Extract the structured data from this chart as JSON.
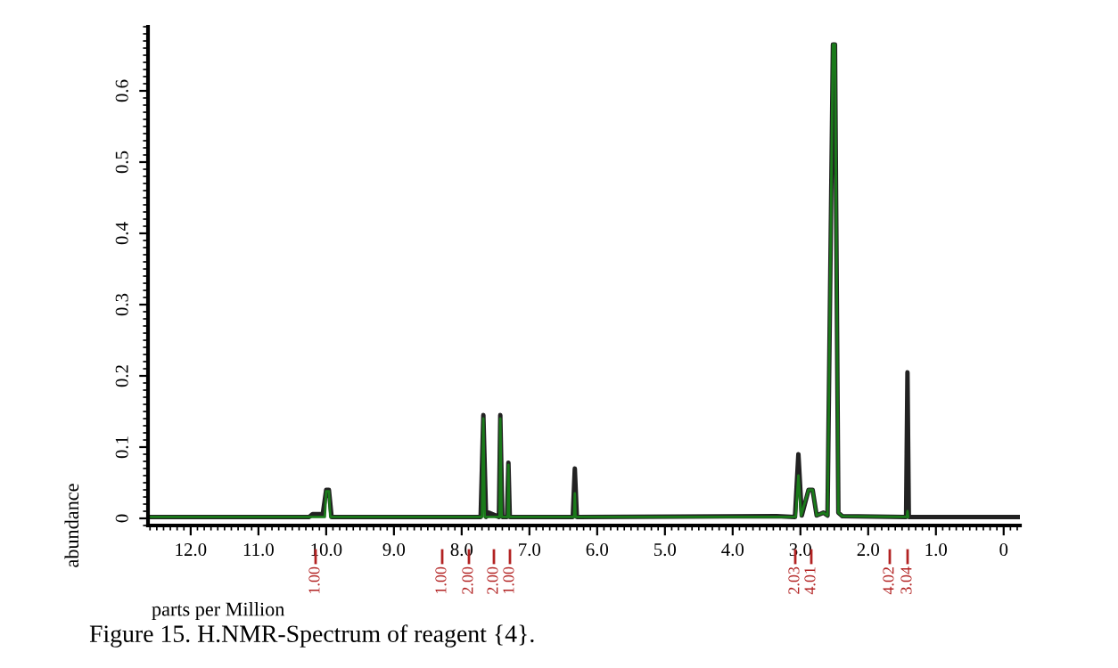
{
  "chart_data": {
    "type": "line",
    "xlabel": "parts per Million",
    "ylabel": "abundance",
    "xlim": [
      12.63,
      -0.24
    ],
    "ylim": [
      -0.01,
      0.69
    ],
    "xticks": [
      {
        "value": 12,
        "label": "12.0"
      },
      {
        "value": 11,
        "label": "11.0"
      },
      {
        "value": 10,
        "label": "10.0"
      },
      {
        "value": 9,
        "label": "9.0"
      },
      {
        "value": 8,
        "label": "8.0"
      },
      {
        "value": 7,
        "label": "7.0"
      },
      {
        "value": 6,
        "label": "6.0"
      },
      {
        "value": 5,
        "label": "5.0"
      },
      {
        "value": 4,
        "label": "4.0"
      },
      {
        "value": 3,
        "label": "3.0"
      },
      {
        "value": 2,
        "label": "2.0"
      },
      {
        "value": 1,
        "label": "1.0"
      },
      0
    ],
    "yticks": [
      0,
      0.1,
      0.2,
      0.3,
      0.4,
      0.5,
      0.6
    ],
    "grid": false,
    "legend": false,
    "marker": "none",
    "line_style": "solid",
    "series": [
      {
        "color": "#222222",
        "x": [
          12.6,
          10.25,
          10.2,
          10.05,
          10.0,
          9.96,
          9.92,
          7.72,
          7.68,
          7.64,
          7.6,
          7.45,
          7.43,
          7.4,
          7.33,
          7.31,
          7.29,
          6.36,
          6.33,
          6.3,
          3.35,
          3.08,
          3.03,
          2.98,
          2.88,
          2.82,
          2.76,
          2.66,
          2.6,
          2.52,
          2.49,
          2.44,
          2.38,
          1.44,
          1.42,
          1.4,
          -0.24
        ],
        "values": [
          0.002,
          0.002,
          0.006,
          0.006,
          0.04,
          0.04,
          0.002,
          0.002,
          0.145,
          0.002,
          0.008,
          0.002,
          0.145,
          0.002,
          0.002,
          0.078,
          0.002,
          0.002,
          0.07,
          0.002,
          0.003,
          0.002,
          0.09,
          0.004,
          0.04,
          0.04,
          0.004,
          0.008,
          0.004,
          0.665,
          0.665,
          0.008,
          0.003,
          0.002,
          0.205,
          0.002,
          0.002
        ]
      },
      {
        "color": "#1a7a1a",
        "x": [
          12.6,
          10.6,
          10.02,
          10.0,
          9.96,
          9.94,
          7.7,
          7.68,
          7.66,
          7.44,
          7.43,
          7.41,
          7.32,
          7.31,
          7.3,
          6.34,
          6.33,
          6.32,
          3.07,
          3.03,
          2.99,
          2.88,
          2.82,
          2.76,
          2.66,
          2.6,
          2.52,
          2.49,
          2.44,
          2.38,
          1.43,
          1.42,
          1.41
        ],
        "values": [
          0.002,
          0.002,
          0.002,
          0.038,
          0.038,
          0.002,
          0.002,
          0.14,
          0.002,
          0.002,
          0.14,
          0.002,
          0.002,
          0.075,
          0.002,
          0.002,
          0.035,
          0.002,
          0.002,
          0.06,
          0.004,
          0.04,
          0.04,
          0.004,
          0.008,
          0.004,
          0.665,
          0.665,
          0.008,
          0.003,
          0.002,
          0.01,
          0.002
        ]
      }
    ],
    "annotations": [
      "1.00",
      "1.00",
      "2.00",
      "2.00",
      "1.00",
      "2.03",
      "4.01",
      "4.02",
      "3.04",
      "Figure 15. H.NMR-Spectrum of reagent {4}."
    ]
  }
}
